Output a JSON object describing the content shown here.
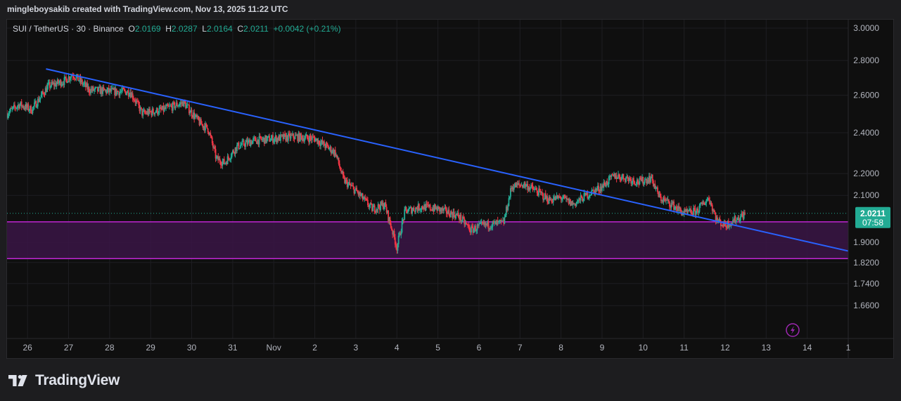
{
  "header": {
    "attribution": "mingleboysakib created with TradingView.com, Nov 13, 2025 11:22 UTC"
  },
  "legend": {
    "symbol": "SUI / TetherUS · 30 · Binance",
    "open_label": "O",
    "open": "2.0169",
    "high_label": "H",
    "high": "2.0287",
    "low_label": "L",
    "low": "2.0164",
    "close_label": "C",
    "close": "2.0211",
    "change": "+0.0042 (+0.21%)"
  },
  "price_tag": {
    "price": "2.0211",
    "countdown": "07:58"
  },
  "brand": {
    "name": "TradingView",
    "logo_icon": "tradingview-logo-icon"
  },
  "colors": {
    "up": "#22ab94",
    "down": "#f23645",
    "trendline": "#2962ff",
    "zone_border": "#c026d3",
    "zone_fill": "#3a1545",
    "price_tag": "#22ab94"
  },
  "chart_data": {
    "type": "candlestick",
    "title": "",
    "xlabel": "",
    "ylabel": "",
    "y_scale": "log",
    "ylim": [
      1.55,
      3.05
    ],
    "y_ticks": [
      "3.0000",
      "2.8000",
      "2.6000",
      "2.4000",
      "2.2000",
      "2.1000",
      "1.9000",
      "1.8200",
      "1.7400",
      "1.6600"
    ],
    "x_ticks": [
      "26",
      "27",
      "28",
      "29",
      "30",
      "31",
      "Nov",
      "2",
      "3",
      "4",
      "5",
      "6",
      "7",
      "8",
      "9",
      "10",
      "11",
      "12",
      "13",
      "14",
      "1"
    ],
    "x_range_days": [
      25.5,
      46.0
    ],
    "price_path": [
      {
        "t": 25.5,
        "p": 2.5
      },
      {
        "t": 25.8,
        "p": 2.55
      },
      {
        "t": 26.1,
        "p": 2.52
      },
      {
        "t": 26.5,
        "p": 2.65
      },
      {
        "t": 26.9,
        "p": 2.68
      },
      {
        "t": 27.1,
        "p": 2.72
      },
      {
        "t": 27.5,
        "p": 2.63
      },
      {
        "t": 28.1,
        "p": 2.62
      },
      {
        "t": 28.5,
        "p": 2.62
      },
      {
        "t": 28.8,
        "p": 2.5
      },
      {
        "t": 29.3,
        "p": 2.52
      },
      {
        "t": 29.8,
        "p": 2.56
      },
      {
        "t": 30.2,
        "p": 2.45
      },
      {
        "t": 30.4,
        "p": 2.42
      },
      {
        "t": 30.6,
        "p": 2.27
      },
      {
        "t": 30.8,
        "p": 2.25
      },
      {
        "t": 31.1,
        "p": 2.33
      },
      {
        "t": 31.5,
        "p": 2.36
      },
      {
        "t": 32.0,
        "p": 2.37
      },
      {
        "t": 32.5,
        "p": 2.38
      },
      {
        "t": 33.0,
        "p": 2.37
      },
      {
        "t": 33.5,
        "p": 2.3
      },
      {
        "t": 33.7,
        "p": 2.17
      },
      {
        "t": 34.0,
        "p": 2.12
      },
      {
        "t": 34.4,
        "p": 2.04
      },
      {
        "t": 34.7,
        "p": 2.06
      },
      {
        "t": 35.0,
        "p": 1.88
      },
      {
        "t": 35.2,
        "p": 2.03
      },
      {
        "t": 35.6,
        "p": 2.05
      },
      {
        "t": 36.0,
        "p": 2.04
      },
      {
        "t": 36.5,
        "p": 2.01
      },
      {
        "t": 36.8,
        "p": 1.95
      },
      {
        "t": 37.1,
        "p": 1.97
      },
      {
        "t": 37.6,
        "p": 1.98
      },
      {
        "t": 37.8,
        "p": 2.14
      },
      {
        "t": 38.1,
        "p": 2.15
      },
      {
        "t": 38.4,
        "p": 2.12
      },
      {
        "t": 38.7,
        "p": 2.08
      },
      {
        "t": 39.0,
        "p": 2.09
      },
      {
        "t": 39.3,
        "p": 2.06
      },
      {
        "t": 39.7,
        "p": 2.11
      },
      {
        "t": 40.0,
        "p": 2.14
      },
      {
        "t": 40.3,
        "p": 2.19
      },
      {
        "t": 40.6,
        "p": 2.18
      },
      {
        "t": 40.9,
        "p": 2.16
      },
      {
        "t": 41.2,
        "p": 2.18
      },
      {
        "t": 41.4,
        "p": 2.09
      },
      {
        "t": 41.7,
        "p": 2.06
      },
      {
        "t": 42.0,
        "p": 2.02
      },
      {
        "t": 42.3,
        "p": 2.03
      },
      {
        "t": 42.6,
        "p": 2.09
      },
      {
        "t": 42.8,
        "p": 1.99
      },
      {
        "t": 43.0,
        "p": 1.97
      },
      {
        "t": 43.3,
        "p": 2.0
      },
      {
        "t": 43.5,
        "p": 2.02
      }
    ],
    "trendline": {
      "from": {
        "t": 26.45,
        "p": 2.75
      },
      "to": {
        "t": 46.0,
        "p": 1.865
      }
    },
    "support_zone": {
      "top": 1.985,
      "bottom": 1.835
    },
    "last_price": 2.0211
  }
}
